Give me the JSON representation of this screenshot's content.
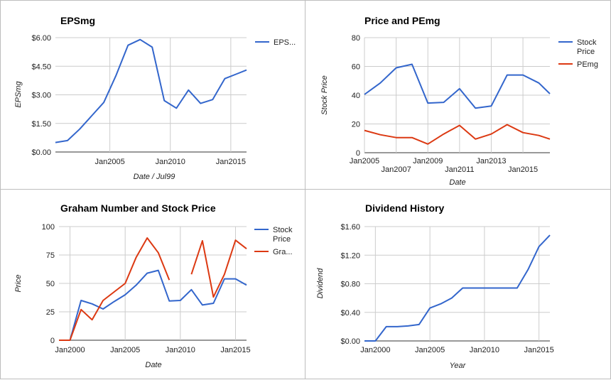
{
  "chart_data": [
    {
      "type": "line",
      "title": "EPSmg",
      "xlabel": "Date / Jul99",
      "ylabel": "EPSmg",
      "xlim": [
        2000.5,
        2016.3
      ],
      "ylim": [
        0,
        6
      ],
      "x_ticks": [
        "Jan2005",
        "Jan2010",
        "Jan2015"
      ],
      "y_ticks": [
        "$0.00",
        "$1.50",
        "$3.00",
        "$4.50",
        "$6.00"
      ],
      "legend": "right",
      "series": [
        {
          "name": "EPS...",
          "color": "#3366cc",
          "x": [
            2000.5,
            2001.5,
            2002.5,
            2003.5,
            2004.5,
            2005.5,
            2006.5,
            2007.5,
            2008.5,
            2009.5,
            2010.5,
            2011.5,
            2012.5,
            2013.5,
            2014.5,
            2015.5,
            2016.3
          ],
          "y": [
            0.5,
            0.6,
            1.2,
            1.9,
            2.6,
            4.0,
            5.6,
            5.9,
            5.5,
            2.7,
            2.3,
            3.25,
            2.55,
            2.75,
            3.85,
            4.1,
            4.3
          ]
        }
      ]
    },
    {
      "type": "line",
      "title": "Price and PEmg",
      "xlabel": "Date",
      "ylabel": "Stock Price",
      "xlim": [
        2005,
        2016.7
      ],
      "ylim": [
        0,
        80
      ],
      "x_ticks": [
        "Jan2005",
        "Jan2007",
        "Jan2009",
        "Jan2011",
        "Jan2013",
        "Jan2015"
      ],
      "y_ticks": [
        "0",
        "20",
        "40",
        "60",
        "80"
      ],
      "legend": "right",
      "series": [
        {
          "name": "Stock Price",
          "color": "#3366cc",
          "x": [
            2005,
            2006,
            2007,
            2008,
            2009,
            2010,
            2011,
            2012,
            2013,
            2014,
            2015,
            2016,
            2016.7
          ],
          "y": [
            40.5,
            48.5,
            59,
            61.5,
            34.5,
            35,
            44.5,
            31,
            32.5,
            54,
            54,
            48.5,
            41
          ]
        },
        {
          "name": "PEmg",
          "color": "#dc3912",
          "x": [
            2005,
            2006,
            2007,
            2008,
            2009,
            2010,
            2011,
            2012,
            2013,
            2014,
            2015,
            2016,
            2016.7
          ],
          "y": [
            15.5,
            12.5,
            10.5,
            10.5,
            6,
            13,
            19,
            9.5,
            13,
            19.5,
            14,
            12,
            9.5
          ]
        }
      ]
    },
    {
      "type": "line",
      "title": "Graham Number and Stock Price",
      "xlabel": "Date",
      "ylabel": "Price",
      "xlim": [
        1999,
        2016
      ],
      "ylim": [
        0,
        100
      ],
      "x_ticks": [
        "Jan2000",
        "Jan2005",
        "Jan2010",
        "Jan2015"
      ],
      "y_ticks": [
        "0",
        "25",
        "50",
        "75",
        "100"
      ],
      "legend": "right",
      "series": [
        {
          "name": "Stock Price",
          "color": "#3366cc",
          "x": [
            1999,
            2000,
            2001,
            2002,
            2003,
            2004,
            2005,
            2006,
            2007,
            2008,
            2009,
            2010,
            2011,
            2012,
            2013,
            2014,
            2015,
            2016
          ],
          "y": [
            0,
            0,
            35,
            32,
            27.5,
            34,
            40,
            48.5,
            59,
            61.5,
            34.5,
            35,
            44.5,
            31,
            32.5,
            54,
            54,
            48.5
          ]
        },
        {
          "name": "Gra...",
          "color": "#dc3912",
          "x": [
            1999,
            2000,
            2001,
            2002,
            2003,
            2004,
            2005,
            2006,
            2007,
            2008,
            2009,
            2010,
            2011,
            2012,
            2013,
            2014,
            2015,
            2016
          ],
          "y": [
            0,
            0,
            27,
            18,
            35,
            42.5,
            50,
            73,
            90,
            77,
            53,
            null,
            58,
            87.5,
            38,
            58,
            88,
            80.5
          ]
        }
      ]
    },
    {
      "type": "line",
      "title": "Dividend History",
      "xlabel": "Year",
      "ylabel": "Dividend",
      "xlim": [
        1999,
        2016
      ],
      "ylim": [
        0,
        1.6
      ],
      "x_ticks": [
        "Jan2000",
        "Jan2005",
        "Jan2010",
        "Jan2015"
      ],
      "y_ticks": [
        "$0.00",
        "$0.40",
        "$0.80",
        "$1.20",
        "$1.60"
      ],
      "legend": "none",
      "series": [
        {
          "color": "#3366cc",
          "x": [
            1999,
            2000,
            2001,
            2002,
            2003,
            2004,
            2005,
            2006,
            2007,
            2008,
            2009,
            2010,
            2011,
            2012,
            2013,
            2014,
            2015,
            2016
          ],
          "y": [
            0,
            0,
            0.2,
            0.2,
            0.21,
            0.23,
            0.46,
            0.52,
            0.6,
            0.74,
            0.74,
            0.74,
            0.74,
            0.74,
            0.74,
            1.0,
            1.32,
            1.48
          ]
        }
      ]
    }
  ]
}
